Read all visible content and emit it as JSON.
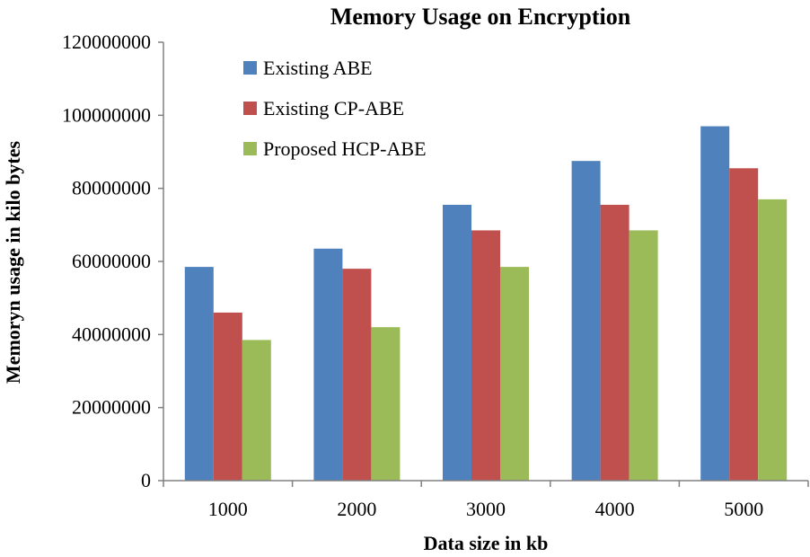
{
  "chart_data": {
    "type": "bar",
    "title": "Memory Usage on Encryption",
    "xlabel": "Data size in kb",
    "ylabel": "Memoryn usage in kilo bytes",
    "categories": [
      "1000",
      "2000",
      "3000",
      "4000",
      "5000"
    ],
    "series": [
      {
        "name": "Existing ABE",
        "color": "#4f81bd",
        "values": [
          58500000,
          63500000,
          75500000,
          87500000,
          97000000
        ]
      },
      {
        "name": "Existing CP-ABE",
        "color": "#c0504d",
        "values": [
          46000000,
          58000000,
          68500000,
          75500000,
          85500000
        ]
      },
      {
        "name": "Proposed HCP-ABE",
        "color": "#9bbb59",
        "values": [
          38500000,
          42000000,
          58500000,
          68500000,
          77000000
        ]
      }
    ],
    "ylim": [
      0,
      120000000
    ],
    "yticks": [
      "0",
      "20000000",
      "40000000",
      "60000000",
      "80000000",
      "100000000",
      "120000000"
    ],
    "grid": false,
    "legend": "top-left"
  }
}
